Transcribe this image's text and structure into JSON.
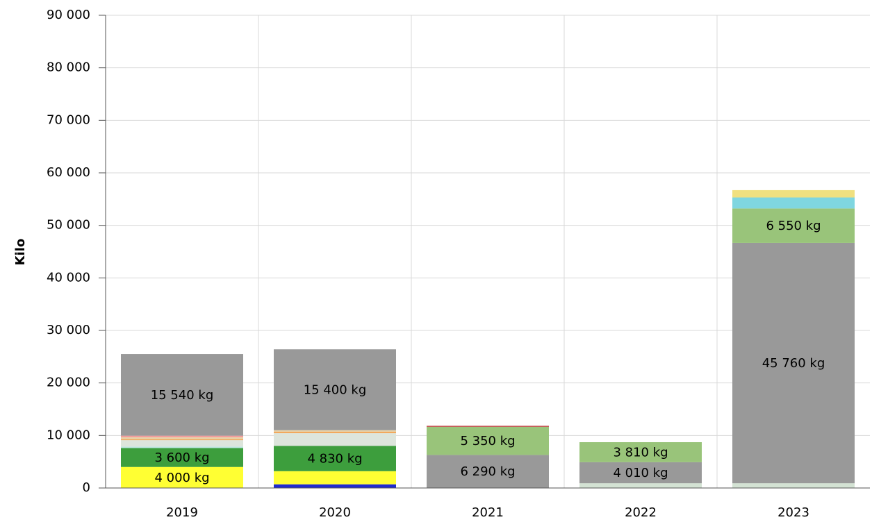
{
  "chart_data": {
    "type": "stacked_bar",
    "y_label": "Kilo",
    "categories": [
      "2019",
      "2020",
      "2021",
      "2022",
      "2023"
    ],
    "ylim": [
      0,
      90000
    ],
    "yticks": [
      0,
      {
        "value": 10000,
        "label": "10 000"
      },
      {
        "value": 20000,
        "label": "20 000"
      },
      {
        "value": 30000,
        "label": "30 000"
      },
      {
        "value": 40000,
        "label": "40 000"
      },
      {
        "value": 50000,
        "label": "50 000"
      },
      {
        "value": 60000,
        "label": "60 000"
      },
      {
        "value": 70000,
        "label": "70 000"
      },
      {
        "value": 80000,
        "label": "80 000"
      },
      {
        "value": 90000,
        "label": "90 000"
      }
    ],
    "grid": true,
    "series": [
      {
        "color": "#1f2bd1",
        "values": [
          0,
          700,
          0,
          0,
          0
        ]
      },
      {
        "color": "#ffff33",
        "values": [
          4000,
          2500,
          0,
          0,
          0
        ],
        "value_labels": [
          "4 000 kg",
          null,
          null,
          null,
          null
        ]
      },
      {
        "color": "#d3e2d3",
        "values": [
          0,
          0,
          0,
          900,
          900
        ]
      },
      {
        "color": "#3d9e3d",
        "values": [
          3600,
          4830,
          0,
          0,
          0
        ],
        "value_labels": [
          "3 600 kg",
          "4 830 kg",
          null,
          null,
          null
        ]
      },
      {
        "color": "#bfe6e0",
        "values": [
          300,
          0,
          0,
          0,
          0
        ]
      },
      {
        "color": "#dde5dc",
        "values": [
          1200,
          2400,
          0,
          0,
          0
        ]
      },
      {
        "color": "#f2a65a",
        "values": [
          200,
          270,
          0,
          0,
          0
        ]
      },
      {
        "color": "#e8d2a8",
        "values": [
          360,
          300,
          0,
          0,
          0
        ]
      },
      {
        "color": "#f29a9a",
        "values": [
          300,
          0,
          0,
          0,
          0
        ]
      },
      {
        "color": "#999999",
        "values": [
          15540,
          15400,
          6290,
          4010,
          45760
        ],
        "value_labels": [
          "15 540 kg",
          "15 400 kg",
          "6 290 kg",
          "4 010 kg",
          "45 760 kg"
        ]
      },
      {
        "color": "#99c47a",
        "values": [
          0,
          0,
          5350,
          3810,
          6550
        ],
        "value_labels": [
          null,
          null,
          "5 350 kg",
          "3 810 kg",
          "6 550 kg"
        ]
      },
      {
        "color": "#c0504d",
        "values": [
          0,
          0,
          200,
          0,
          0
        ]
      },
      {
        "color": "#7fd6e0",
        "values": [
          0,
          0,
          0,
          0,
          2100
        ]
      },
      {
        "color": "#f0e080",
        "values": [
          0,
          0,
          0,
          0,
          1400
        ]
      }
    ]
  }
}
